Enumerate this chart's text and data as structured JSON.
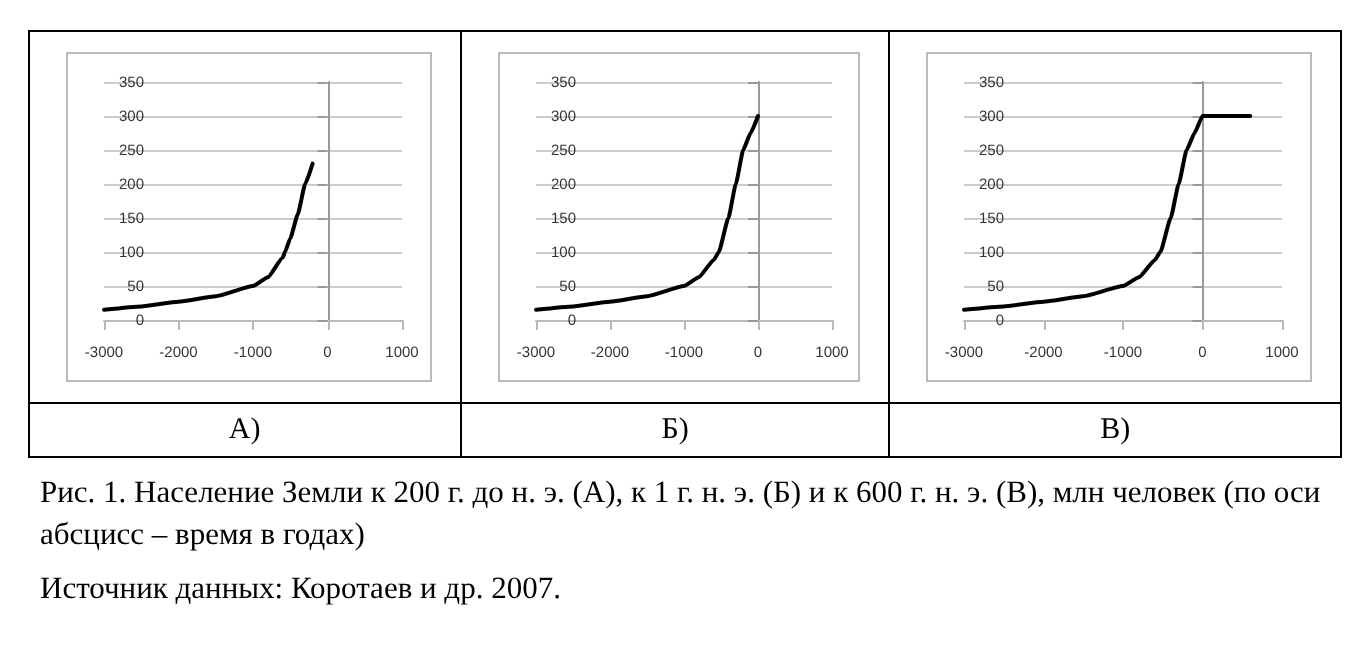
{
  "chart_data": [
    {
      "type": "line",
      "title": "А)",
      "x": [
        -3000,
        -2500,
        -2000,
        -1500,
        -1000,
        -800,
        -600,
        -570,
        -500,
        -400,
        -300,
        -200
      ],
      "series": [
        {
          "color": "#000000",
          "values": [
            15,
            20,
            27,
            35,
            50,
            63,
            92,
            100,
            120,
            155,
            200,
            230
          ]
        }
      ],
      "xlim": [
        -3000,
        1000
      ],
      "xticks": [
        -3000,
        -2000,
        -1000,
        0,
        1000
      ],
      "ylim": [
        0,
        350
      ],
      "yticks": [
        0,
        50,
        100,
        150,
        200,
        250,
        300,
        350
      ],
      "grid": "y",
      "marker": "none",
      "line_style": "solid"
    },
    {
      "type": "line",
      "title": "Б)",
      "x": [
        -3000,
        -2500,
        -2000,
        -1500,
        -1000,
        -800,
        -600,
        -530,
        -400,
        -300,
        -200,
        -100,
        0
      ],
      "series": [
        {
          "color": "#000000",
          "values": [
            15,
            20,
            27,
            35,
            50,
            63,
            88,
            100,
            150,
            200,
            250,
            275,
            300
          ]
        }
      ],
      "xlim": [
        -3000,
        1000
      ],
      "xticks": [
        -3000,
        -2000,
        -1000,
        0,
        1000
      ],
      "ylim": [
        0,
        350
      ],
      "yticks": [
        0,
        50,
        100,
        150,
        200,
        250,
        300,
        350
      ],
      "grid": "y",
      "marker": "none",
      "line_style": "solid"
    },
    {
      "type": "line",
      "title": "В)",
      "x": [
        -3000,
        -2500,
        -2000,
        -1500,
        -1000,
        -800,
        -600,
        -530,
        -400,
        -300,
        -200,
        -100,
        0,
        600
      ],
      "series": [
        {
          "color": "#000000",
          "values": [
            15,
            20,
            27,
            35,
            50,
            63,
            88,
            100,
            150,
            200,
            250,
            275,
            300,
            300
          ]
        }
      ],
      "xlim": [
        -3000,
        1000
      ],
      "xticks": [
        -3000,
        -2000,
        -1000,
        0,
        1000
      ],
      "ylim": [
        0,
        350
      ],
      "yticks": [
        0,
        50,
        100,
        150,
        200,
        250,
        300,
        350
      ],
      "grid": "y",
      "marker": "none",
      "line_style": "solid"
    },
    {
      "type": "other",
      "title": "Рис. 1. Население Земли к 200 г. до н. э. (А), к 1 г. н. э. (Б) и к 600 г. н. э. (В), млн человек (по оси абсцисс – время в годах)",
      "annotations": [
        "Источник данных: Коротаев и др. 2007."
      ]
    }
  ]
}
